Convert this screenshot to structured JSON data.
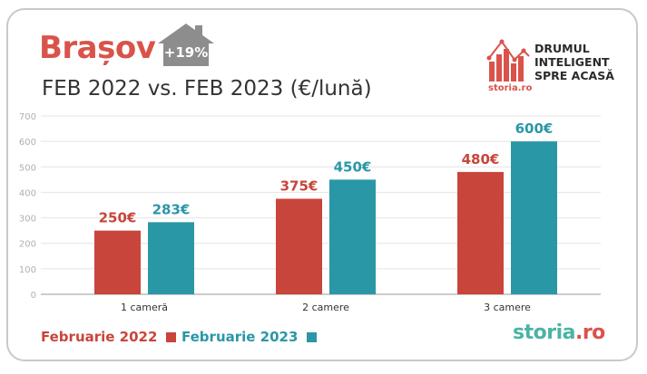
{
  "header": {
    "title": "Brașov",
    "subtitle": "FEB 2022 vs. FEB 2023 (€/lună)",
    "badge": "+19%"
  },
  "logo": {
    "tagline": [
      "DRUMUL",
      "INTELIGENT",
      "SPRE ACASĂ"
    ],
    "small_brand": "storia.ro"
  },
  "footer": {
    "brand_main": "storia",
    "brand_suffix": ".ro"
  },
  "colors": {
    "series_2022": "#c8453b",
    "series_2023": "#2a97a6",
    "title": "#d9534a",
    "house": "#8d8d8d"
  },
  "chart_data": {
    "type": "bar",
    "categories": [
      "1 cameră",
      "2 camere",
      "3 camere"
    ],
    "series": [
      {
        "name": "Februarie 2022",
        "values": [
          250,
          375,
          480
        ],
        "labels": [
          "250€",
          "375€",
          "480€"
        ]
      },
      {
        "name": "Februarie 2023",
        "values": [
          283,
          450,
          600
        ],
        "labels": [
          "283€",
          "450€",
          "600€"
        ]
      }
    ],
    "ylim": [
      0,
      700
    ],
    "yticks": [
      0,
      100,
      200,
      300,
      400,
      500,
      600,
      700
    ],
    "grid": true,
    "legend": "bottom-left"
  }
}
